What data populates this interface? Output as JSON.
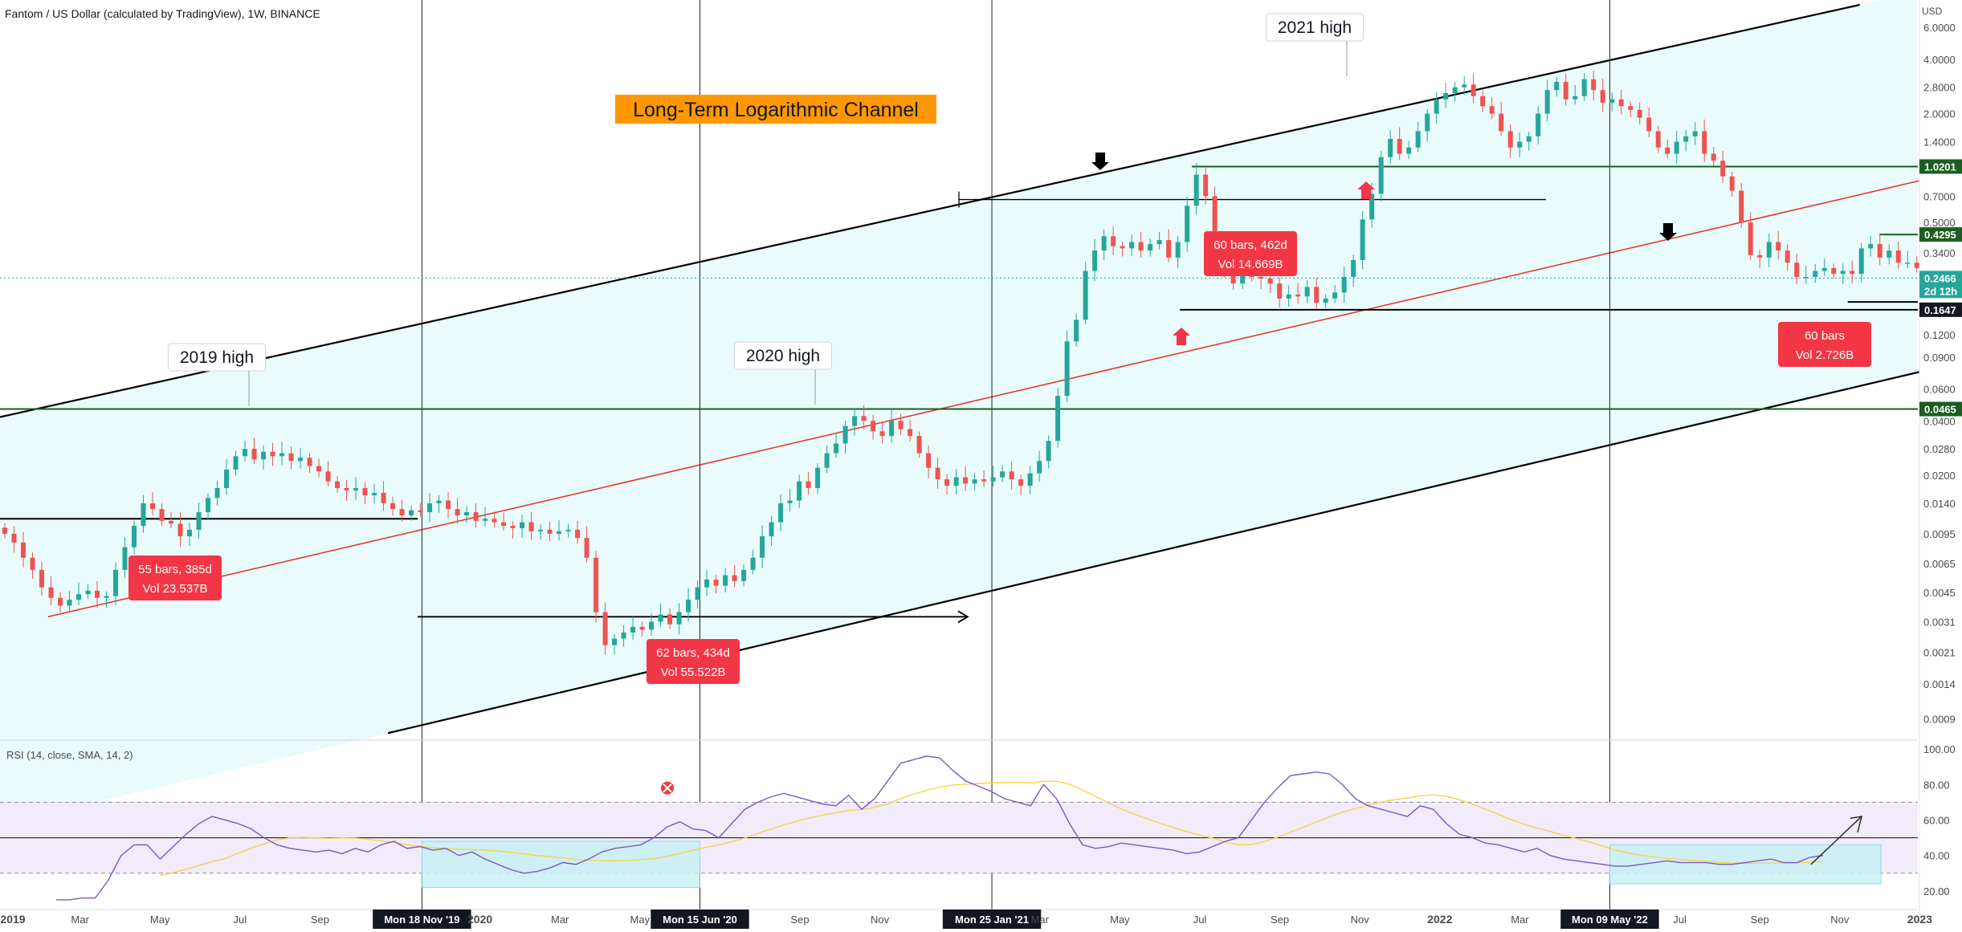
{
  "chart_data": {
    "type": "candlestick",
    "title": "Fantom / US Dollar (calculated by TradingView), 1W, BINANCE",
    "currency": "USD",
    "scale": "log",
    "ylim": [
      0.0007,
      8.0
    ],
    "colors": {
      "up": "#26a69a",
      "down": "#ef5350",
      "channel_fill": "#e9fbfb",
      "rsi_line": "#7e57c2",
      "rsi_ma": "#f5d547",
      "rsi_band": "#f1ebfb",
      "rsi_box": "#c9f0f4"
    },
    "price_ticks": [
      "6.0000",
      "4.0000",
      "2.8000",
      "2.0000",
      "1.4000",
      "0.7000",
      "0.5000",
      "0.3400",
      "0.1200",
      "0.0900",
      "0.0600",
      "0.0400",
      "0.0280",
      "0.0200",
      "0.0140",
      "0.0095",
      "0.0065",
      "0.0045",
      "0.0031",
      "0.0021",
      "0.0014",
      "0.0009"
    ],
    "price_tick_values": [
      6.0,
      4.0,
      2.8,
      2.0,
      1.4,
      0.7,
      0.5,
      0.34,
      0.12,
      0.09,
      0.06,
      0.04,
      0.028,
      0.02,
      0.014,
      0.0095,
      0.0065,
      0.0045,
      0.0031,
      0.0021,
      0.0014,
      0.0009
    ],
    "price_labels": [
      {
        "text": "1.0201",
        "value": 1.0201,
        "style": "green"
      },
      {
        "text": "0.4295",
        "value": 0.4295,
        "style": "green"
      },
      {
        "text": "0.2466",
        "value": 0.2466,
        "style": "teal"
      },
      {
        "text": "2d 12h",
        "value": 0.2466,
        "style": "teal-sub"
      },
      {
        "text": "0.1647",
        "value": 0.1647,
        "style": "black"
      },
      {
        "text": "0.0465",
        "value": 0.0465,
        "style": "green"
      }
    ],
    "date_ticks": [
      {
        "text": "2019",
        "bold": true,
        "t": 0.0
      },
      {
        "text": "Mar",
        "t": 2.0
      },
      {
        "text": "May",
        "t": 4.0
      },
      {
        "text": "Jul",
        "t": 6.0
      },
      {
        "text": "Sep",
        "t": 8.0
      },
      {
        "text": "Mon 18 Nov '19",
        "boxed": true,
        "t": 10.55
      },
      {
        "text": "2020",
        "bold": true,
        "t": 12.0
      },
      {
        "text": "Mar",
        "t": 14.0
      },
      {
        "text": "May",
        "t": 16.0
      },
      {
        "text": "Mon 15 Jun '20",
        "boxed": true,
        "t": 17.5
      },
      {
        "text": "Sep",
        "t": 20.0
      },
      {
        "text": "Nov",
        "t": 22.0
      },
      {
        "text": "Mon 25 Jan '21",
        "boxed": true,
        "t": 24.8
      },
      {
        "text": "Mar",
        "t": 26.0
      },
      {
        "text": "May",
        "t": 28.0
      },
      {
        "text": "Jul",
        "t": 30.0
      },
      {
        "text": "Sep",
        "t": 32.0
      },
      {
        "text": "Nov",
        "t": 34.0
      },
      {
        "text": "2022",
        "bold": true,
        "t": 36.0
      },
      {
        "text": "Mar",
        "t": 38.0
      },
      {
        "text": "Mon 09 May '22",
        "boxed": true,
        "t": 40.25
      },
      {
        "text": "Jul",
        "t": 42.0
      },
      {
        "text": "Sep",
        "t": 44.0
      },
      {
        "text": "Nov",
        "t": 46.0
      },
      {
        "text": "2023",
        "bold": true,
        "t": 48.0
      }
    ],
    "vertical_markers_t": [
      10.55,
      17.5,
      24.8,
      40.25
    ],
    "candles_close": [
      0.0095,
      0.0085,
      0.007,
      0.006,
      0.0048,
      0.0042,
      0.0038,
      0.0041,
      0.0044,
      0.0046,
      0.0042,
      0.0043,
      0.006,
      0.008,
      0.0105,
      0.014,
      0.013,
      0.0112,
      0.0108,
      0.0092,
      0.01,
      0.0125,
      0.015,
      0.017,
      0.0215,
      0.0255,
      0.028,
      0.0245,
      0.027,
      0.0255,
      0.0265,
      0.024,
      0.025,
      0.0225,
      0.021,
      0.0185,
      0.017,
      0.0165,
      0.017,
      0.0155,
      0.016,
      0.014,
      0.013,
      0.012,
      0.0128,
      0.0125,
      0.014,
      0.0145,
      0.013,
      0.012,
      0.0125,
      0.0112,
      0.0115,
      0.011,
      0.0105,
      0.0102,
      0.011,
      0.0098,
      0.01,
      0.0095,
      0.0098,
      0.01,
      0.009,
      0.007,
      0.0035,
      0.0023,
      0.0025,
      0.0027,
      0.0029,
      0.0028,
      0.0031,
      0.0034,
      0.003,
      0.0035,
      0.0041,
      0.0048,
      0.0053,
      0.0049,
      0.0056,
      0.0052,
      0.006,
      0.007,
      0.0092,
      0.011,
      0.014,
      0.0145,
      0.0185,
      0.017,
      0.022,
      0.0265,
      0.03,
      0.0375,
      0.0425,
      0.04,
      0.035,
      0.033,
      0.04,
      0.036,
      0.033,
      0.0265,
      0.022,
      0.019,
      0.0175,
      0.0195,
      0.018,
      0.019,
      0.0185,
      0.0195,
      0.021,
      0.019,
      0.0175,
      0.0205,
      0.024,
      0.031,
      0.055,
      0.11,
      0.145,
      0.27,
      0.35,
      0.42,
      0.37,
      0.36,
      0.39,
      0.35,
      0.38,
      0.4,
      0.32,
      0.39,
      0.62,
      0.92,
      0.7,
      0.4,
      0.27,
      0.23,
      0.28,
      0.25,
      0.245,
      0.23,
      0.19,
      0.2,
      0.195,
      0.22,
      0.18,
      0.19,
      0.205,
      0.25,
      0.31,
      0.52,
      0.72,
      1.15,
      1.45,
      1.2,
      1.3,
      1.6,
      2.0,
      2.4,
      2.6,
      2.8,
      2.9,
      2.5,
      2.2,
      2.0,
      1.6,
      1.3,
      1.4,
      1.5,
      2.0,
      2.7,
      3.0,
      2.4,
      2.5,
      3.1,
      2.7,
      2.3,
      2.4,
      2.2,
      2.1,
      1.9,
      1.6,
      1.3,
      1.2,
      1.4,
      1.5,
      1.6,
      1.2,
      1.1,
      0.9,
      0.75,
      0.5,
      0.33,
      0.32,
      0.39,
      0.35,
      0.3,
      0.25,
      0.25,
      0.27,
      0.28,
      0.26,
      0.27,
      0.26,
      0.36,
      0.38,
      0.32,
      0.35,
      0.3,
      0.3,
      0.28,
      0.25,
      0.23,
      0.23,
      0.225,
      0.22,
      0.225,
      0.21,
      0.22,
      0.26,
      0.23,
      0.18,
      0.185,
      0.2,
      0.2466
    ],
    "annotations": [
      {
        "text": "2019 high",
        "t": 6.4,
        "v": 0.068
      },
      {
        "text": "2020 high",
        "t": 23.2,
        "v": 0.069
      },
      {
        "text": "2021 high",
        "t": 39.0,
        "v": 6.2
      },
      {
        "text": "Long-Term Logarithmic Channel",
        "style": "orange-banner"
      }
    ],
    "measure_labels": [
      {
        "line1": "55 bars, 385d",
        "line2": "Vol 23.537B"
      },
      {
        "line1": "62 bars, 434d",
        "line2": "Vol 55.522B"
      },
      {
        "line1": "60 bars, 462d",
        "line2": "Vol 14.669B"
      },
      {
        "line1": "60 bars",
        "line2": "Vol 2.726B"
      }
    ],
    "channel": {
      "upper": {
        "t0": 0.0,
        "v0": 0.042,
        "t1": 46.5,
        "v1": 8.0
      },
      "lower": {
        "t0": 9.7,
        "v0": 0.00075,
        "t1": 57.0,
        "v1": 0.22
      },
      "middle": {
        "t0": 1.2,
        "v0": 0.0033,
        "t1": 55.6,
        "v1": 2.1
      }
    },
    "horizontal_levels": [
      {
        "value": 1.0201,
        "t0": 29.8,
        "t1": 57.5,
        "color": "#1b5e20"
      },
      {
        "value": 0.4295,
        "t0": 47.0,
        "t1": 57.5,
        "color": "#1b5e20"
      },
      {
        "value": 0.0465,
        "t0": 0.0,
        "t1": 57.5,
        "color": "#1b5e20"
      },
      {
        "value": 0.1647,
        "t0": 29.5,
        "t1": 57.5,
        "color": "#000000"
      },
      {
        "value": 0.182,
        "t0": 46.2,
        "t1": 57.5,
        "color": "#000000"
      }
    ],
    "rsi": {
      "title": "RSI (14, close, SMA, 14, 2)",
      "ticks": [
        "100.00",
        "80.00",
        "60.00",
        "40.00",
        "20.00"
      ],
      "tick_values": [
        100,
        80,
        60,
        40,
        20
      ],
      "upper_band": 70,
      "lower_band": 30,
      "mid": 50,
      "values": [
        15,
        15,
        16,
        16,
        26,
        40,
        46,
        46,
        38,
        45,
        52,
        58,
        62,
        60,
        58,
        55,
        50,
        46,
        44,
        43,
        42,
        43,
        41,
        44,
        42,
        46,
        48,
        44,
        45,
        43,
        44,
        40,
        42,
        38,
        35,
        32,
        30,
        31,
        33,
        36,
        35,
        38,
        42,
        44,
        45,
        46,
        50,
        56,
        59,
        55,
        54,
        50,
        58,
        66,
        70,
        73,
        75,
        73,
        71,
        69,
        68,
        74,
        66,
        72,
        82,
        92,
        94,
        96,
        95,
        88,
        82,
        79,
        76,
        72,
        70,
        68,
        80,
        72,
        58,
        46,
        44,
        45,
        47,
        46,
        45,
        44,
        43,
        41,
        42,
        45,
        48,
        50,
        60,
        70,
        78,
        85,
        86,
        87,
        86,
        80,
        72,
        68,
        66,
        64,
        62,
        68,
        66,
        58,
        52,
        50,
        47,
        46,
        44,
        42,
        44,
        40,
        38,
        37,
        36,
        35,
        34,
        34,
        35,
        36,
        37,
        36,
        36,
        36,
        35,
        35,
        36,
        37,
        38,
        36,
        36,
        39,
        40
      ]
    }
  }
}
